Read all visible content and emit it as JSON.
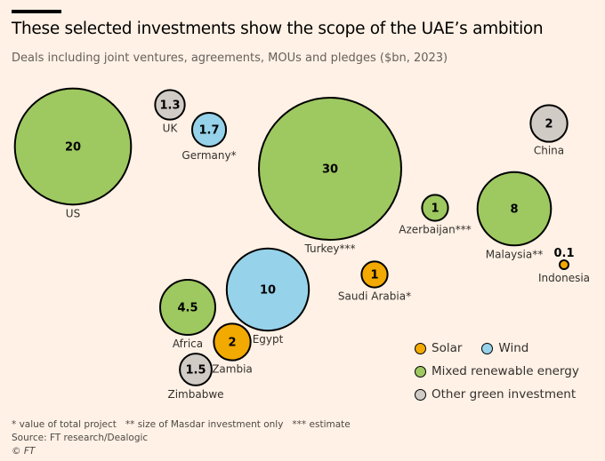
{
  "title": "These selected investments show the scope of the UAE’s ambition",
  "subtitle": "Deals including joint ventures, agreements, MOUs and pledges ($bn, 2023)",
  "colors": {
    "Solar": "#f2a900",
    "Wind": "#96d2ea",
    "Mixed renewable energy": "#9ec860",
    "Other green investment": "#d1cbc6",
    "outline": "#000000"
  },
  "legend": [
    {
      "category": "Solar",
      "label": "Solar"
    },
    {
      "category": "Wind",
      "label": "Wind"
    },
    {
      "category": "Mixed renewable energy",
      "label": "Mixed renewable energy"
    },
    {
      "category": "Other green investment",
      "label": "Other green investment"
    }
  ],
  "chart_data": {
    "type": "bubble",
    "title": "These selected investments show the scope of the UAE’s ambition",
    "subtitle": "Deals including joint ventures, agreements, MOUs and pledges ($bn, 2023)",
    "size_unit": "$bn",
    "points": [
      {
        "label": "US",
        "value": 20,
        "value_label": "20",
        "category": "Mixed renewable energy"
      },
      {
        "label": "UK",
        "value": 1.3,
        "value_label": "1.3",
        "category": "Other green investment"
      },
      {
        "label": "Germany*",
        "value": 1.7,
        "value_label": "1.7",
        "category": "Wind"
      },
      {
        "label": "Turkey***",
        "value": 30,
        "value_label": "30",
        "category": "Mixed renewable energy"
      },
      {
        "label": "Azerbaijan***",
        "value": 1,
        "value_label": "1",
        "category": "Mixed renewable energy"
      },
      {
        "label": "China",
        "value": 2,
        "value_label": "2",
        "category": "Other green investment"
      },
      {
        "label": "Malaysia**",
        "value": 8,
        "value_label": "8",
        "category": "Mixed renewable energy"
      },
      {
        "label": "Indonesia",
        "value": 0.1,
        "value_label": "0.1",
        "category": "Solar"
      },
      {
        "label": "Saudi Arabia*",
        "value": 1,
        "value_label": "1",
        "category": "Solar"
      },
      {
        "label": "Egypt",
        "value": 10,
        "value_label": "10",
        "category": "Wind"
      },
      {
        "label": "Africa",
        "value": 4.5,
        "value_label": "4.5",
        "category": "Mixed renewable energy"
      },
      {
        "label": "Zambia",
        "value": 2,
        "value_label": "2",
        "category": "Solar"
      },
      {
        "label": "Zimbabwe",
        "value": 1.5,
        "value_label": "1.5",
        "category": "Other green investment"
      }
    ]
  },
  "footnote": "* value of total project   ** size of Masdar investment only   *** estimate",
  "source": "Source: FT research/Dealogic",
  "credit": "© FT"
}
